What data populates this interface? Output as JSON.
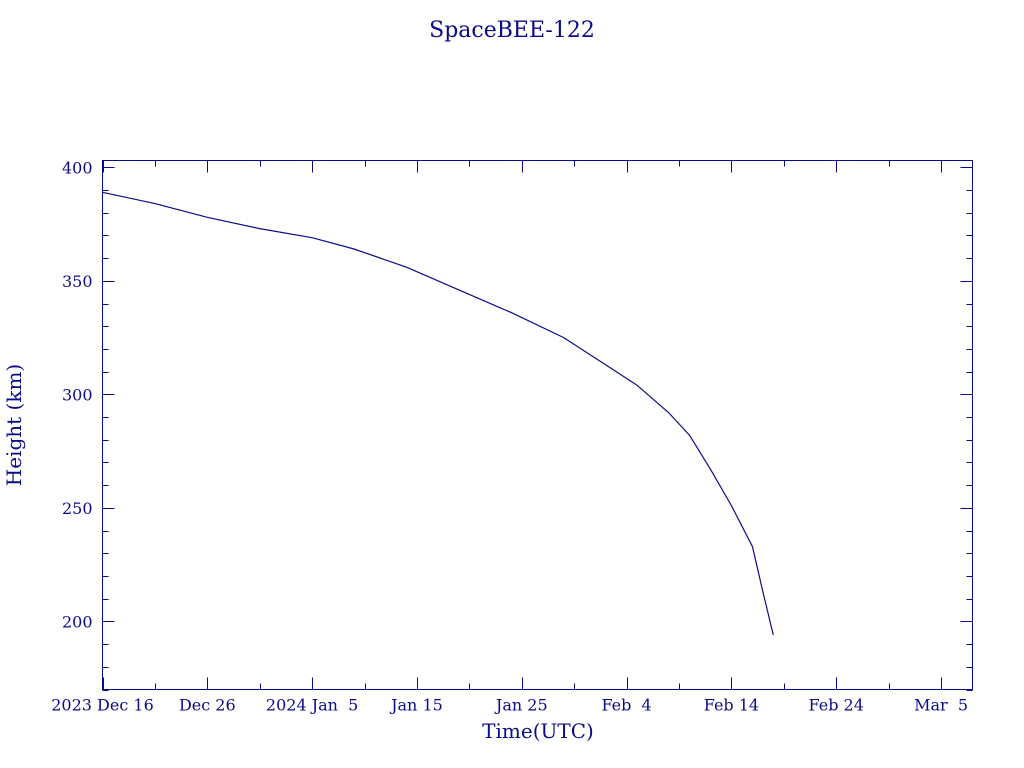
{
  "chart_data": {
    "type": "line",
    "title": "SpaceBEE-122",
    "xlabel": "Time(UTC)",
    "ylabel": "Height (km)",
    "grid": false,
    "color": "#0b0b8a",
    "xlim": [
      "2023-12-16",
      "2024-03-08"
    ],
    "ylim": [
      170,
      403
    ],
    "x_ticks": [
      {
        "date": "2023-12-16",
        "label": "2023 Dec 16"
      },
      {
        "date": "2023-12-26",
        "label": "Dec 26"
      },
      {
        "date": "2024-01-05",
        "label": "2024 Jan  5"
      },
      {
        "date": "2024-01-15",
        "label": "Jan 15"
      },
      {
        "date": "2024-01-25",
        "label": "Jan 25"
      },
      {
        "date": "2024-02-04",
        "label": "Feb  4"
      },
      {
        "date": "2024-02-14",
        "label": "Feb 14"
      },
      {
        "date": "2024-02-24",
        "label": "Feb 24"
      },
      {
        "date": "2024-03-05",
        "label": "Mar  5"
      }
    ],
    "y_ticks": [
      200,
      250,
      300,
      350,
      400
    ],
    "series": [
      {
        "x": [
          "2023-12-16",
          "2023-12-18",
          "2023-12-21",
          "2023-12-26",
          "2023-12-31",
          "2024-01-05",
          "2024-01-09",
          "2024-01-14",
          "2024-01-19",
          "2024-01-24",
          "2024-01-29",
          "2024-02-02",
          "2024-02-05",
          "2024-02-08",
          "2024-02-10",
          "2024-02-12",
          "2024-02-14",
          "2024-02-16",
          "2024-02-17",
          "2024-02-18"
        ],
        "y": [
          389,
          387,
          384,
          378,
          373,
          369,
          364,
          356,
          346,
          336,
          325,
          313,
          304,
          292,
          282,
          267,
          251,
          233,
          213,
          194
        ]
      }
    ]
  }
}
